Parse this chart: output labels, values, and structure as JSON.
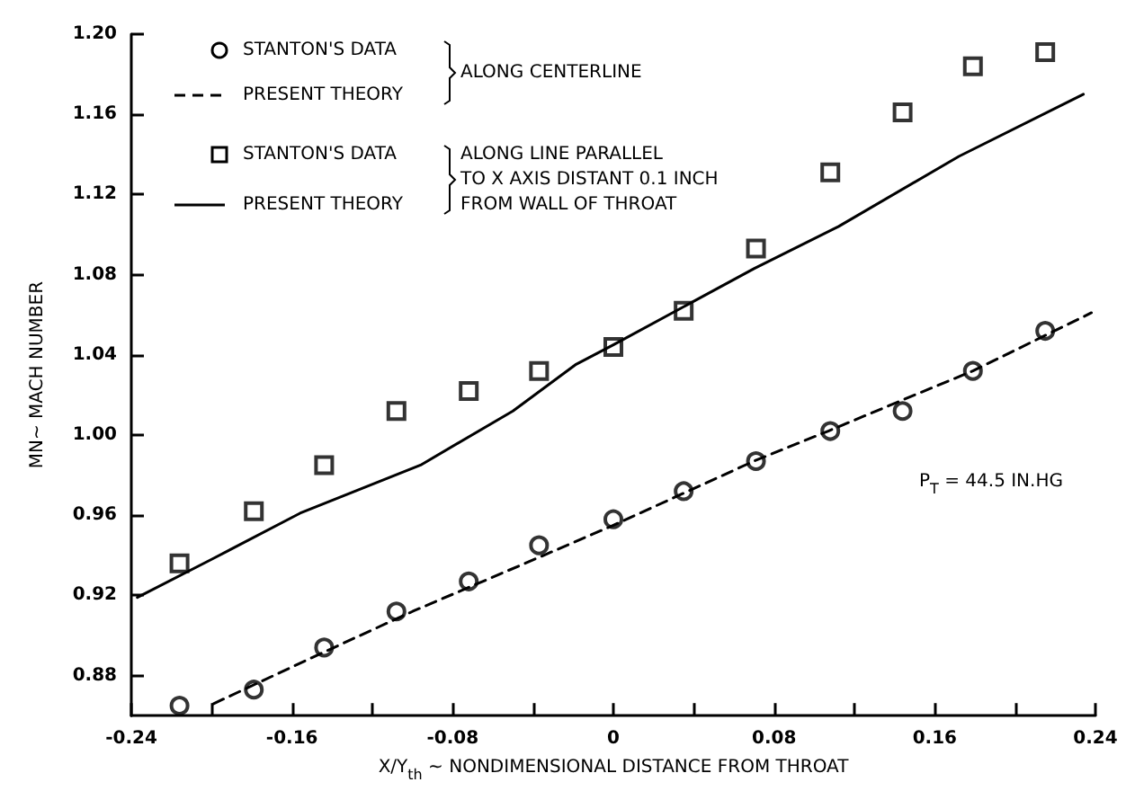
{
  "chart_data": {
    "type": "scatter",
    "xlabel": "X/Y$_{th}$ ~ NONDIMENSIONAL DISTANCE FROM THROAT",
    "ylabel": "MN~ MACH NUMBER",
    "xlim": [
      -0.24,
      0.24
    ],
    "xticks": [
      {
        "value": -0.24,
        "label": "-0.24"
      },
      {
        "value": -0.2,
        "label": null
      },
      {
        "value": -0.16,
        "label": "-0.16"
      },
      {
        "value": -0.12,
        "label": null
      },
      {
        "value": -0.08,
        "label": "-0.08"
      },
      {
        "value": -0.04,
        "label": null
      },
      {
        "value": 0,
        "label": "0"
      },
      {
        "value": 0.04,
        "label": null
      },
      {
        "value": 0.08,
        "label": "0.08"
      },
      {
        "value": 0.12,
        "label": null
      },
      {
        "value": 0.16,
        "label": "0.16"
      },
      {
        "value": 0.2,
        "label": null
      },
      {
        "value": 0.24,
        "label": "0.24"
      }
    ],
    "ylim": [
      0.86,
      1.2
    ],
    "yticks": [
      {
        "value": 0.88,
        "label": "0.88"
      },
      {
        "value": 0.92,
        "label": "0.92"
      },
      {
        "value": 0.96,
        "label": "0.96"
      },
      {
        "value": 1.0,
        "label": "1.00"
      },
      {
        "value": 1.04,
        "label": "1.04"
      },
      {
        "value": 1.08,
        "label": "1.08"
      },
      {
        "value": 1.12,
        "label": "1.12"
      },
      {
        "value": 1.16,
        "label": "1.16"
      },
      {
        "value": 1.2,
        "label": "1.20"
      }
    ],
    "grid": false,
    "legend": "top left",
    "annotations": [
      "ALONG CENTERLINE",
      "ALONG LINE PARALLEL\nTO X AXIS DISTANT 0.1 INCH\nFROM WALL OF THROAT",
      "P$_{T}$ = 44.5 IN.HG"
    ],
    "series": [
      {
        "name": "STANTON'S DATA",
        "marker": "circle",
        "color": "#000000",
        "x": [
          -0.216,
          -0.179,
          -0.144,
          -0.108,
          -0.072,
          -0.037,
          0,
          0.035,
          0.071,
          0.108,
          0.144,
          0.179,
          0.215
        ],
        "values": [
          0.865,
          0.873,
          0.894,
          0.912,
          0.927,
          0.945,
          0.958,
          0.972,
          0.987,
          1.002,
          1.012,
          1.032,
          1.052
        ]
      },
      {
        "name": "PRESENT THEORY",
        "type": "line",
        "marker": "none",
        "line_style": "dashed",
        "color": "#000000",
        "x": [
          -0.199,
          -0.15,
          -0.1,
          -0.072,
          -0.037,
          0,
          0.035,
          0.07,
          0.107,
          0.15,
          0.179,
          0.238
        ],
        "values": [
          0.866,
          0.889,
          0.912,
          0.924,
          0.939,
          0.955,
          0.971,
          0.987,
          1.002,
          1.02,
          1.032,
          1.061
        ]
      },
      {
        "name": "STANTON'S DATA",
        "marker": "square",
        "color": "#000000",
        "x": [
          -0.216,
          -0.179,
          -0.144,
          -0.108,
          -0.072,
          -0.037,
          0,
          0.035,
          0.071,
          0.108,
          0.144,
          0.179,
          0.215
        ],
        "values": [
          0.936,
          0.962,
          0.985,
          1.012,
          1.022,
          1.032,
          1.044,
          1.062,
          1.093,
          1.131,
          1.161,
          1.184,
          1.191
        ]
      },
      {
        "name": "PRESENT THEORY",
        "type": "line",
        "marker": "none",
        "line_style": "solid",
        "color": "#000000",
        "x": [
          -0.237,
          -0.2,
          -0.156,
          -0.096,
          -0.05,
          -0.019,
          0,
          0.035,
          0.07,
          0.112,
          0.172,
          0.234
        ],
        "values": [
          0.919,
          0.938,
          0.961,
          0.985,
          1.012,
          1.035,
          1.045,
          1.064,
          1.083,
          1.104,
          1.139,
          1.17
        ]
      }
    ]
  }
}
